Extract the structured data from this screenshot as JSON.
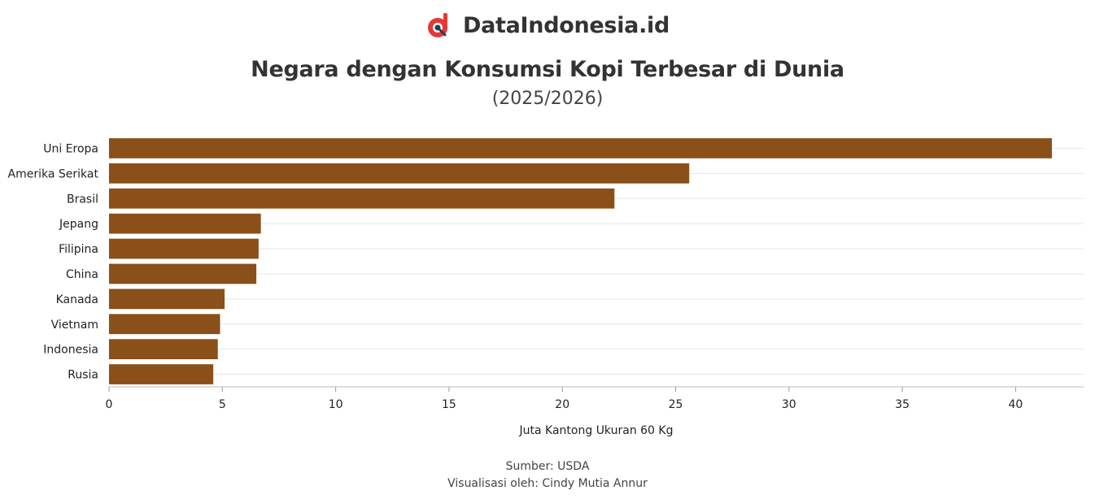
{
  "brand": {
    "name": "DataIndonesia.id",
    "logo_icon": "dataindonesia-logo-icon",
    "logo_color": "#e53935"
  },
  "header": {
    "title": "Negara dengan Konsumsi Kopi Terbesar di Dunia",
    "subtitle": "(2025/2026)"
  },
  "footer": {
    "source": "Sumber: USDA",
    "credit": "Visualisasi oleh: Cindy Mutia Annur"
  },
  "chart_data": {
    "type": "bar",
    "orientation": "horizontal",
    "categories": [
      "Uni Eropa",
      "Amerika Serikat",
      "Brasil",
      "Jepang",
      "Filipina",
      "China",
      "Kanada",
      "Vietnam",
      "Indonesia",
      "Rusia"
    ],
    "values": [
      41.6,
      25.6,
      22.3,
      6.7,
      6.6,
      6.5,
      5.1,
      4.9,
      4.8,
      4.6
    ],
    "xlabel": "Juta Kantong Ukuran 60 Kg",
    "ylabel": "",
    "xlim": [
      0,
      43
    ],
    "xticks": [
      0,
      5,
      10,
      15,
      20,
      25,
      30,
      35,
      40
    ],
    "bar_color": "#8b4f19",
    "grid": true
  }
}
